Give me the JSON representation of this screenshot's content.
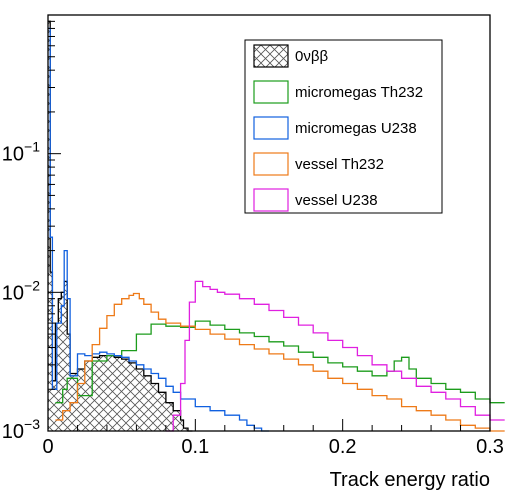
{
  "chart_data": {
    "type": "line",
    "xlabel": "Track energy ratio",
    "ylabel": "",
    "xlim": [
      0,
      0.3
    ],
    "ylim": [
      0.001,
      1
    ],
    "y_scale": "log",
    "grid": false,
    "legend_position": "top-right",
    "x_ticks": [
      {
        "value": 0,
        "label": "0"
      },
      {
        "value": 0.1,
        "label": "0.1"
      },
      {
        "value": 0.2,
        "label": "0.2"
      },
      {
        "value": 0.3,
        "label": "0.3"
      }
    ],
    "y_ticks": [
      {
        "value": 0.001,
        "base": "10",
        "exp": "−3"
      },
      {
        "value": 0.01,
        "base": "10",
        "exp": "−2"
      },
      {
        "value": 0.1,
        "base": "10",
        "exp": "−1"
      }
    ],
    "series": [
      {
        "name": "0νββ",
        "color": "#000000",
        "style": "hatched",
        "x": [
          0,
          0.0015,
          0.003,
          0.005,
          0.007,
          0.009,
          0.011,
          0.013,
          0.015,
          0.02,
          0.025,
          0.03,
          0.035,
          0.04,
          0.045,
          0.05,
          0.055,
          0.06,
          0.065,
          0.07,
          0.075,
          0.08,
          0.085,
          0.09,
          0.092,
          0.095
        ],
        "y": [
          0.9,
          0.014,
          0.0023,
          0.006,
          0.009,
          0.01,
          0.012,
          0.005,
          0.0026,
          0.0028,
          0.0032,
          0.0034,
          0.0035,
          0.0035,
          0.0034,
          0.0033,
          0.0031,
          0.0028,
          0.0025,
          0.0022,
          0.0019,
          0.0016,
          0.0014,
          0.0012,
          0.00105,
          0.001
        ]
      },
      {
        "name": "micromegas Th232",
        "color": "#1c9c1c",
        "x": [
          0.005,
          0.01,
          0.013,
          0.02,
          0.03,
          0.04,
          0.05,
          0.06,
          0.07,
          0.08,
          0.09,
          0.1,
          0.11,
          0.12,
          0.13,
          0.14,
          0.15,
          0.16,
          0.17,
          0.18,
          0.19,
          0.2,
          0.21,
          0.22,
          0.23,
          0.235,
          0.24,
          0.245,
          0.25,
          0.26,
          0.27,
          0.28,
          0.29,
          0.3
        ],
        "y": [
          0.0016,
          0.002,
          0.0024,
          0.0018,
          0.0032,
          0.0035,
          0.0038,
          0.005,
          0.0059,
          0.0057,
          0.0056,
          0.0062,
          0.0058,
          0.0054,
          0.0051,
          0.0048,
          0.0044,
          0.0041,
          0.0037,
          0.0034,
          0.0031,
          0.0029,
          0.0027,
          0.0025,
          0.0027,
          0.0032,
          0.0034,
          0.0028,
          0.0024,
          0.0022,
          0.002,
          0.0019,
          0.0017,
          0.0016
        ]
      },
      {
        "name": "micromegas U238",
        "color": "#1060e0",
        "x": [
          0,
          0.0015,
          0.003,
          0.006,
          0.009,
          0.011,
          0.013,
          0.015,
          0.02,
          0.025,
          0.03,
          0.035,
          0.04,
          0.045,
          0.05,
          0.055,
          0.06,
          0.065,
          0.07,
          0.075,
          0.08,
          0.085,
          0.09,
          0.1,
          0.11,
          0.12,
          0.13,
          0.135,
          0.14,
          0.145
        ],
        "y": [
          0.8,
          0.025,
          0.002,
          0.006,
          0.008,
          0.02,
          0.009,
          0.0025,
          0.0036,
          0.0035,
          0.0036,
          0.0037,
          0.0036,
          0.0035,
          0.0034,
          0.0032,
          0.003,
          0.0028,
          0.0026,
          0.0024,
          0.0021,
          0.0019,
          0.0017,
          0.0015,
          0.0014,
          0.0013,
          0.0012,
          0.0011,
          0.00105,
          0.001
        ]
      },
      {
        "name": "vessel Th232",
        "color": "#ee7a18",
        "x": [
          0.005,
          0.01,
          0.015,
          0.02,
          0.025,
          0.03,
          0.035,
          0.04,
          0.045,
          0.05,
          0.055,
          0.058,
          0.062,
          0.065,
          0.07,
          0.075,
          0.08,
          0.09,
          0.1,
          0.11,
          0.12,
          0.13,
          0.14,
          0.15,
          0.16,
          0.17,
          0.18,
          0.19,
          0.2,
          0.21,
          0.22,
          0.23,
          0.24,
          0.25,
          0.26,
          0.27,
          0.28,
          0.29,
          0.3
        ],
        "y": [
          0.0012,
          0.0014,
          0.0016,
          0.0022,
          0.0032,
          0.0042,
          0.0055,
          0.0068,
          0.0082,
          0.009,
          0.0095,
          0.0098,
          0.009,
          0.0082,
          0.0072,
          0.0064,
          0.006,
          0.0057,
          0.0054,
          0.005,
          0.0046,
          0.0042,
          0.0039,
          0.0036,
          0.0033,
          0.003,
          0.0027,
          0.0024,
          0.0022,
          0.002,
          0.0018,
          0.0017,
          0.0015,
          0.0014,
          0.0013,
          0.0012,
          0.0011,
          0.00105,
          0.001
        ]
      },
      {
        "name": "vessel U238",
        "color": "#e020e0",
        "x": [
          0.08,
          0.085,
          0.09,
          0.093,
          0.096,
          0.1,
          0.105,
          0.11,
          0.115,
          0.12,
          0.13,
          0.14,
          0.15,
          0.16,
          0.17,
          0.18,
          0.19,
          0.2,
          0.21,
          0.22,
          0.23,
          0.24,
          0.25,
          0.26,
          0.27,
          0.28,
          0.29,
          0.3
        ],
        "y": [
          0.001,
          0.0013,
          0.0022,
          0.0045,
          0.0085,
          0.012,
          0.011,
          0.0105,
          0.01,
          0.0097,
          0.009,
          0.0082,
          0.0074,
          0.0066,
          0.0058,
          0.0051,
          0.0045,
          0.004,
          0.0035,
          0.003,
          0.0027,
          0.0024,
          0.0021,
          0.0019,
          0.0017,
          0.0015,
          0.0013,
          0.0012
        ]
      }
    ]
  }
}
